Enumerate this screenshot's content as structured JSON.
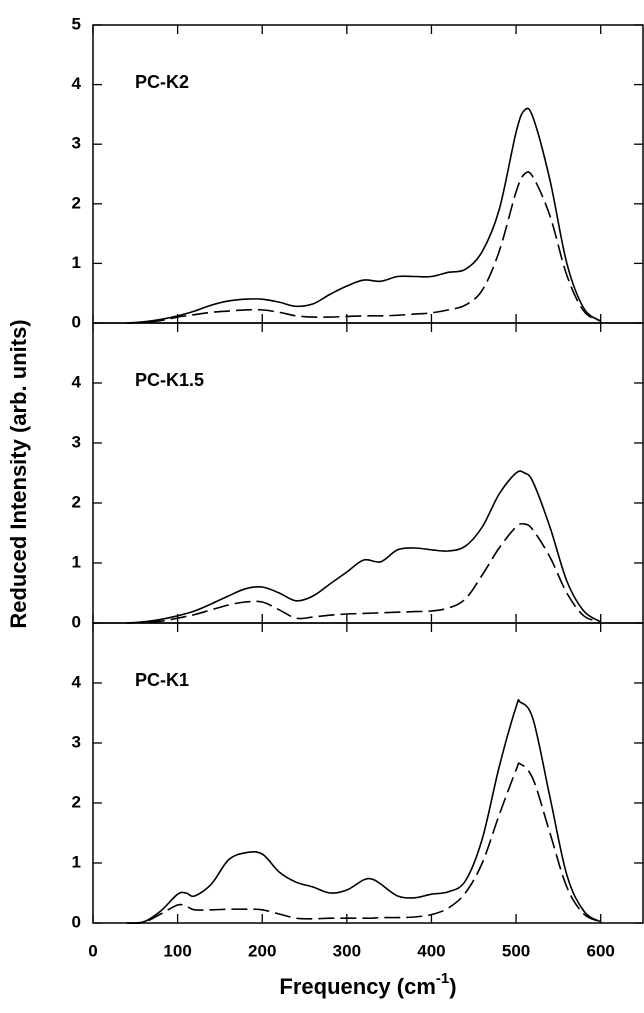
{
  "xlabel": [
    "Frequency (cm",
    "-1",
    ")"
  ],
  "ylabel": "Reduced Intensity (arb. units)",
  "chart_data": [
    {
      "type": "line",
      "annotation": "PC-K2",
      "x": [
        40,
        60,
        80,
        100,
        120,
        140,
        160,
        180,
        200,
        220,
        240,
        260,
        280,
        300,
        320,
        340,
        360,
        380,
        400,
        420,
        440,
        460,
        480,
        500,
        510,
        520,
        540,
        560,
        580,
        600
      ],
      "series": [
        {
          "color": "#000",
          "dash": false,
          "values": [
            0,
            0.02,
            0.06,
            0.12,
            0.2,
            0.3,
            0.37,
            0.4,
            0.4,
            0.35,
            0.28,
            0.32,
            0.48,
            0.62,
            0.72,
            0.7,
            0.78,
            0.78,
            0.78,
            0.85,
            0.9,
            1.2,
            1.9,
            3.2,
            3.57,
            3.45,
            2.4,
            1.0,
            0.25,
            0.03
          ]
        },
        {
          "color": "#000",
          "dash": true,
          "values": [
            0,
            0.01,
            0.04,
            0.1,
            0.14,
            0.18,
            0.2,
            0.22,
            0.22,
            0.18,
            0.12,
            0.1,
            0.1,
            0.11,
            0.12,
            0.12,
            0.13,
            0.15,
            0.17,
            0.22,
            0.3,
            0.55,
            1.2,
            2.2,
            2.5,
            2.45,
            1.8,
            0.8,
            0.2,
            0.03
          ]
        }
      ],
      "xlim": [
        0,
        650
      ],
      "xticks": [
        0,
        100,
        200,
        300,
        400,
        500,
        600
      ],
      "ylim": [
        0,
        5
      ],
      "yticks": [
        0,
        1,
        2,
        3,
        4,
        5
      ]
    },
    {
      "type": "line",
      "annotation": "PC-K1.5",
      "x": [
        40,
        60,
        80,
        100,
        120,
        140,
        160,
        180,
        200,
        220,
        240,
        260,
        280,
        300,
        320,
        340,
        360,
        380,
        400,
        420,
        440,
        460,
        480,
        500,
        510,
        520,
        540,
        560,
        580,
        600
      ],
      "series": [
        {
          "color": "#000",
          "dash": false,
          "values": [
            0,
            0.02,
            0.06,
            0.12,
            0.2,
            0.32,
            0.45,
            0.57,
            0.6,
            0.5,
            0.37,
            0.45,
            0.65,
            0.85,
            1.05,
            1.02,
            1.22,
            1.25,
            1.22,
            1.2,
            1.28,
            1.6,
            2.15,
            2.5,
            2.5,
            2.35,
            1.6,
            0.7,
            0.2,
            0.02
          ]
        },
        {
          "color": "#000",
          "dash": true,
          "values": [
            0,
            0.01,
            0.03,
            0.08,
            0.14,
            0.22,
            0.3,
            0.35,
            0.35,
            0.22,
            0.08,
            0.1,
            0.13,
            0.15,
            0.16,
            0.17,
            0.18,
            0.19,
            0.2,
            0.25,
            0.4,
            0.8,
            1.25,
            1.6,
            1.65,
            1.55,
            1.1,
            0.5,
            0.12,
            0.02
          ]
        }
      ],
      "xlim": [
        0,
        650
      ],
      "xticks": [
        0,
        100,
        200,
        300,
        400,
        500,
        600
      ],
      "ylim": [
        0,
        5
      ],
      "yticks": [
        0,
        1,
        2,
        3,
        4
      ]
    },
    {
      "type": "line",
      "annotation": "PC-K1",
      "x": [
        40,
        60,
        80,
        100,
        110,
        120,
        140,
        160,
        180,
        200,
        220,
        240,
        260,
        280,
        300,
        320,
        330,
        340,
        360,
        380,
        400,
        420,
        440,
        460,
        480,
        500,
        505,
        520,
        540,
        560,
        580,
        600
      ],
      "series": [
        {
          "color": "#000",
          "dash": false,
          "values": [
            0,
            0.02,
            0.2,
            0.48,
            0.5,
            0.45,
            0.65,
            1.05,
            1.17,
            1.15,
            0.85,
            0.68,
            0.6,
            0.5,
            0.55,
            0.72,
            0.73,
            0.65,
            0.45,
            0.42,
            0.48,
            0.52,
            0.7,
            1.4,
            2.6,
            3.6,
            3.68,
            3.4,
            2.1,
            0.8,
            0.2,
            0.02
          ]
        },
        {
          "color": "#000",
          "dash": true,
          "values": [
            0,
            0.01,
            0.15,
            0.3,
            0.28,
            0.22,
            0.22,
            0.23,
            0.23,
            0.22,
            0.15,
            0.08,
            0.07,
            0.08,
            0.08,
            0.08,
            0.08,
            0.09,
            0.09,
            0.1,
            0.14,
            0.25,
            0.5,
            1.0,
            1.8,
            2.55,
            2.65,
            2.4,
            1.5,
            0.6,
            0.15,
            0.02
          ]
        }
      ],
      "xlim": [
        0,
        650
      ],
      "xticks": [
        0,
        100,
        200,
        300,
        400,
        500,
        600
      ],
      "ylim": [
        0,
        5
      ],
      "yticks": [
        0,
        1,
        2,
        3,
        4
      ]
    }
  ]
}
